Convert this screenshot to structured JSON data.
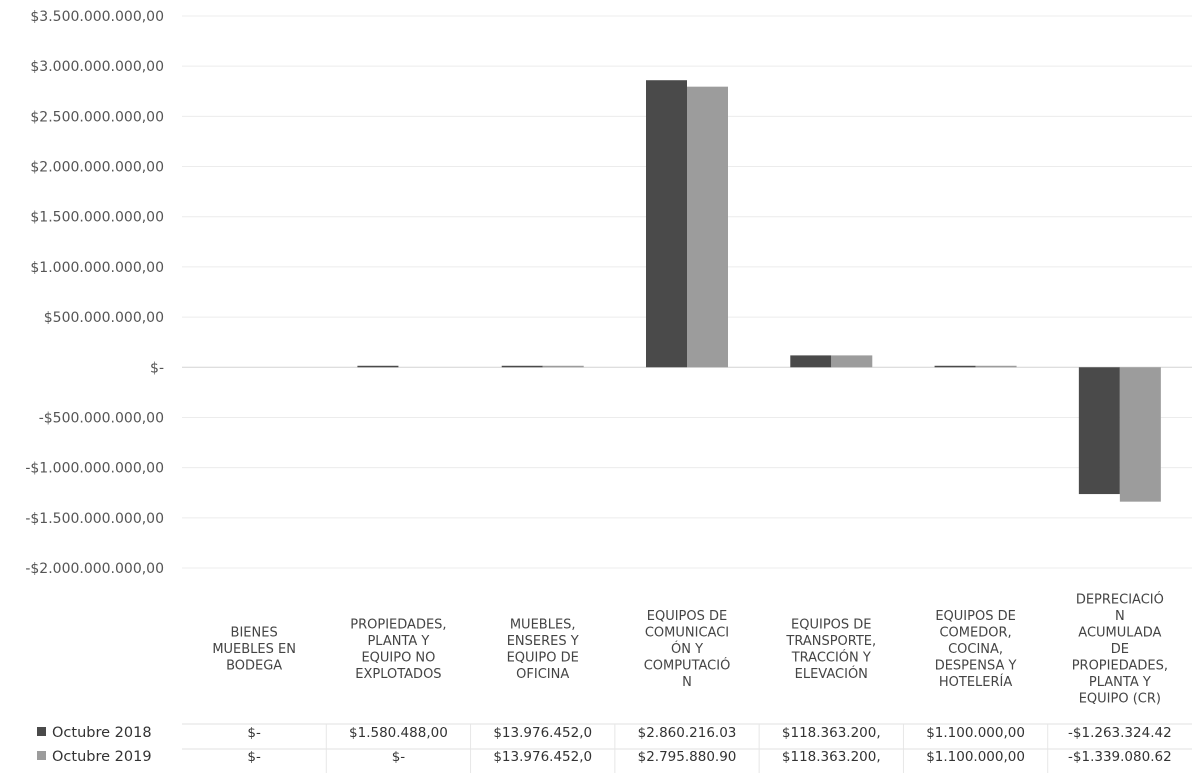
{
  "chart_data": {
    "type": "bar",
    "title": "",
    "xlabel": "",
    "ylabel": "",
    "ylim": [
      -2000000000,
      3500000000
    ],
    "grid": true,
    "legend_placement": "bottom-left (data table)",
    "y_ticks": [
      {
        "value": 3500000000,
        "label": "$3.500.000.000,00"
      },
      {
        "value": 3000000000,
        "label": "$3.000.000.000,00"
      },
      {
        "value": 2500000000,
        "label": "$2.500.000.000,00"
      },
      {
        "value": 2000000000,
        "label": "$2.000.000.000,00"
      },
      {
        "value": 1500000000,
        "label": "$1.500.000.000,00"
      },
      {
        "value": 1000000000,
        "label": "$1.000.000.000,00"
      },
      {
        "value": 500000000,
        "label": "$500.000.000,00"
      },
      {
        "value": 0,
        "label": "$-"
      },
      {
        "value": -500000000,
        "label": "-$500.000.000,00"
      },
      {
        "value": -1000000000,
        "label": "-$1.000.000.000,00"
      },
      {
        "value": -1500000000,
        "label": "-$1.500.000.000,00"
      },
      {
        "value": -2000000000,
        "label": "-$2.000.000.000,00"
      }
    ],
    "categories": [
      [
        "BIENES",
        "MUEBLES EN",
        "BODEGA"
      ],
      [
        "PROPIEDADES,",
        "PLANTA Y",
        "EQUIPO NO",
        "EXPLOTADOS"
      ],
      [
        "MUEBLES,",
        "ENSERES Y",
        "EQUIPO DE",
        "OFICINA"
      ],
      [
        "EQUIPOS DE",
        "COMUNICACI",
        "ÓN Y",
        "COMPUTACIÓ",
        "N"
      ],
      [
        "EQUIPOS DE",
        "TRANSPORTE,",
        "TRACCIÓN Y",
        "ELEVACIÓN"
      ],
      [
        "EQUIPOS DE",
        "COMEDOR,",
        "COCINA,",
        "DESPENSA Y",
        "HOTELERÍA"
      ],
      [
        "DEPRECIACIÓ",
        "N",
        "ACUMULADA",
        "DE",
        "PROPIEDADES,",
        "PLANTA Y",
        "EQUIPO (CR)"
      ]
    ],
    "series": [
      {
        "name": "Octubre 2018",
        "color": "#4a4a4a",
        "values": [
          0,
          1580488,
          13976452,
          2860216030,
          118363200,
          1100000,
          -1263324420
        ],
        "table_labels": [
          "$-",
          "$1.580.488,00",
          "$13.976.452,0",
          "$2.860.216.03",
          "$118.363.200,",
          "$1.100.000,00",
          "-$1.263.324.42"
        ]
      },
      {
        "name": "Octubre 2019",
        "color": "#9c9c9c",
        "values": [
          0,
          0,
          13976452,
          2795880900,
          118363200,
          1100000,
          -1339080620
        ],
        "table_labels": [
          "$-",
          "$-",
          "$13.976.452,0",
          "$2.795.880.90",
          "$118.363.200,",
          "$1.100.000,00",
          "-$1.339.080.62"
        ]
      }
    ]
  }
}
